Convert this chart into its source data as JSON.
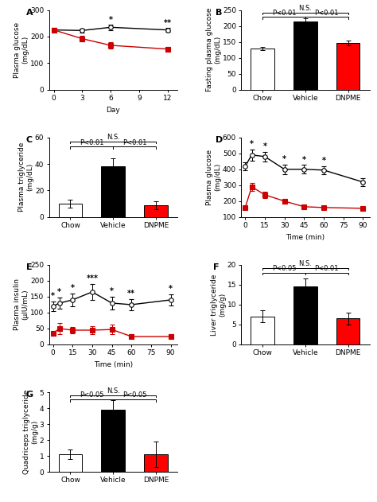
{
  "panel_A": {
    "title": "A",
    "xlabel": "Day",
    "ylabel": "Plasma glucose\n(mg/dL)",
    "xlim": [
      -0.5,
      13
    ],
    "ylim": [
      0,
      300
    ],
    "yticks": [
      0,
      100,
      200,
      300
    ],
    "xticks": [
      0,
      3,
      6,
      9,
      12
    ],
    "black_x": [
      0,
      3,
      6,
      12
    ],
    "black_y": [
      225,
      223,
      235,
      225
    ],
    "black_err": [
      8,
      8,
      10,
      8
    ],
    "red_x": [
      0,
      3,
      6,
      12
    ],
    "red_y": [
      225,
      192,
      167,
      153
    ],
    "red_err": [
      8,
      10,
      12,
      8
    ],
    "sig_labels": [
      {
        "x": 6,
        "label": "*"
      },
      {
        "x": 12,
        "label": "**"
      }
    ]
  },
  "panel_B": {
    "title": "B",
    "xlabel": "",
    "ylabel": "Fasting plasma glucose\n(mg/dL)",
    "ylim": [
      0,
      250
    ],
    "yticks": [
      0,
      50,
      100,
      150,
      200,
      250
    ],
    "categories": [
      "Chow",
      "Vehicle",
      "DNPME"
    ],
    "values": [
      130,
      215,
      147
    ],
    "errors": [
      5,
      8,
      7
    ],
    "colors": [
      "white",
      "black",
      "red"
    ],
    "sig_lines": [
      {
        "x1": 0,
        "x2": 2,
        "y": 242,
        "label": "N.S."
      },
      {
        "x1": 0,
        "x2": 1,
        "y": 228,
        "label": "P<0.01"
      },
      {
        "x1": 1,
        "x2": 2,
        "y": 228,
        "label": "P<0.01"
      }
    ]
  },
  "panel_C": {
    "title": "C",
    "xlabel": "",
    "ylabel": "Plasma triglyceride\n(mg/dL)",
    "ylim": [
      0,
      60
    ],
    "yticks": [
      0,
      20,
      40,
      60
    ],
    "categories": [
      "Chow",
      "Vehicle",
      "DNPME"
    ],
    "values": [
      10,
      38,
      9
    ],
    "errors": [
      3,
      6,
      3
    ],
    "colors": [
      "white",
      "black",
      "red"
    ],
    "sig_lines": [
      {
        "x1": 0,
        "x2": 2,
        "y": 57,
        "label": "N.S."
      },
      {
        "x1": 0,
        "x2": 1,
        "y": 53,
        "label": "P<0.01"
      },
      {
        "x1": 1,
        "x2": 2,
        "y": 53,
        "label": "P<0.01"
      }
    ]
  },
  "panel_D": {
    "title": "D",
    "xlabel": "Time (min)",
    "ylabel": "Plasma glucose\n(mg/dL)",
    "xlim": [
      -3,
      95
    ],
    "ylim": [
      100,
      600
    ],
    "yticks": [
      100,
      200,
      300,
      400,
      500,
      600
    ],
    "xticks": [
      0,
      15,
      30,
      45,
      60,
      75,
      90
    ],
    "black_x": [
      0,
      5,
      15,
      30,
      45,
      60,
      90
    ],
    "black_y": [
      420,
      490,
      480,
      400,
      400,
      395,
      320
    ],
    "black_err": [
      25,
      35,
      30,
      30,
      28,
      25,
      25
    ],
    "red_x": [
      0,
      5,
      15,
      30,
      45,
      60,
      90
    ],
    "red_y": [
      160,
      290,
      240,
      200,
      165,
      160,
      155
    ],
    "red_err": [
      10,
      25,
      20,
      15,
      10,
      10,
      10
    ],
    "sig_labels": [
      {
        "x": 5,
        "label": "*"
      },
      {
        "x": 15,
        "label": "*"
      },
      {
        "x": 30,
        "label": "*"
      },
      {
        "x": 45,
        "label": "*"
      },
      {
        "x": 60,
        "label": "*"
      }
    ]
  },
  "panel_E": {
    "title": "E",
    "xlabel": "Time (min)",
    "ylabel": "Plasma insulin\n(μIU/mL)",
    "xlim": [
      -3,
      95
    ],
    "ylim": [
      0,
      250
    ],
    "yticks": [
      0,
      50,
      100,
      150,
      200,
      250
    ],
    "xticks": [
      0,
      15,
      30,
      45,
      60,
      75,
      90
    ],
    "black_x": [
      0,
      5,
      15,
      30,
      45,
      60,
      90
    ],
    "black_y": [
      120,
      130,
      140,
      165,
      130,
      125,
      140
    ],
    "black_err": [
      15,
      18,
      20,
      25,
      20,
      18,
      18
    ],
    "red_x": [
      0,
      5,
      15,
      30,
      45,
      60,
      90
    ],
    "red_y": [
      35,
      50,
      45,
      45,
      47,
      25,
      25
    ],
    "red_err": [
      8,
      18,
      10,
      12,
      15,
      8,
      8
    ],
    "sig_labels": [
      {
        "x": 0,
        "label": "*"
      },
      {
        "x": 5,
        "label": "*"
      },
      {
        "x": 15,
        "label": "*"
      },
      {
        "x": 30,
        "label": "***"
      },
      {
        "x": 45,
        "label": "*"
      },
      {
        "x": 60,
        "label": "**"
      },
      {
        "x": 90,
        "label": "*"
      }
    ]
  },
  "panel_F": {
    "title": "F",
    "xlabel": "",
    "ylabel": "Liver triglyceride\n(mg/g)",
    "ylim": [
      0,
      20
    ],
    "yticks": [
      0,
      5,
      10,
      15,
      20
    ],
    "categories": [
      "Chow",
      "Vehicle",
      "DNPME"
    ],
    "values": [
      7,
      14.5,
      6.5
    ],
    "errors": [
      1.5,
      2,
      1.5
    ],
    "colors": [
      "white",
      "black",
      "red"
    ],
    "sig_lines": [
      {
        "x1": 0,
        "x2": 2,
        "y": 19.2,
        "label": "N.S."
      },
      {
        "x1": 0,
        "x2": 1,
        "y": 18.0,
        "label": "P<0.05"
      },
      {
        "x1": 1,
        "x2": 2,
        "y": 18.0,
        "label": "P<0.01"
      }
    ]
  },
  "panel_G": {
    "title": "G",
    "xlabel": "",
    "ylabel": "Quadriceps triglyceride\n(mg/g)",
    "ylim": [
      0,
      5
    ],
    "yticks": [
      0,
      1,
      2,
      3,
      4,
      5
    ],
    "categories": [
      "Chow",
      "Vehicle",
      "DNPME"
    ],
    "values": [
      1.1,
      3.9,
      1.1
    ],
    "errors": [
      0.3,
      0.6,
      0.8
    ],
    "colors": [
      "white",
      "black",
      "red"
    ],
    "sig_lines": [
      {
        "x1": 0,
        "x2": 2,
        "y": 4.82,
        "label": "N.S."
      },
      {
        "x1": 0,
        "x2": 1,
        "y": 4.55,
        "label": "P<0.05"
      },
      {
        "x1": 1,
        "x2": 2,
        "y": 4.55,
        "label": "P<0.05"
      }
    ]
  },
  "black_color": "#000000",
  "red_color": "#cc0000",
  "fontsize_label": 6.5,
  "fontsize_tick": 6.5,
  "fontsize_title": 8,
  "fontsize_sig": 6,
  "linewidth": 1.0,
  "markersize": 4
}
